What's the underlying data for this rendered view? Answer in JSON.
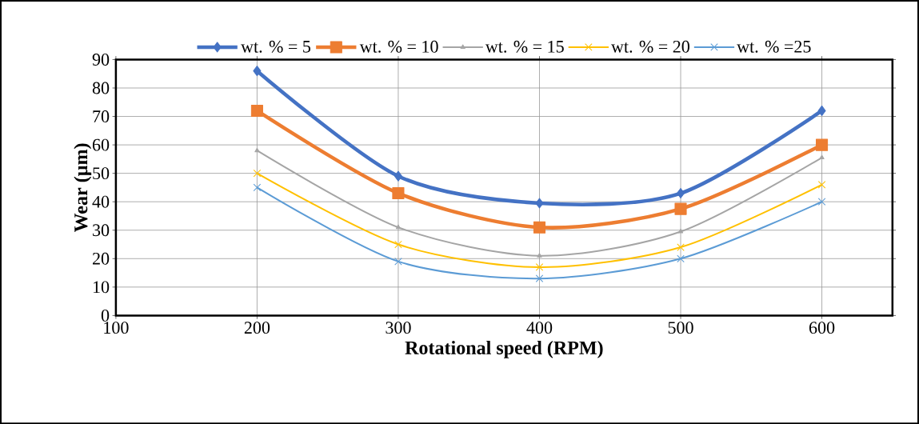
{
  "chart_data": {
    "type": "line",
    "xlabel": "Rotational speed   (RPM)",
    "ylabel": "Wear   (µm)",
    "x": [
      200,
      300,
      400,
      500,
      600
    ],
    "series": [
      {
        "name": "wt. % = 5",
        "color": "#4472c4",
        "marker": "diamond",
        "values": [
          86,
          49,
          39.5,
          43,
          72
        ]
      },
      {
        "name": "wt. % = 10",
        "color": "#ed7d31",
        "marker": "square",
        "values": [
          72,
          43,
          31,
          37.5,
          60
        ]
      },
      {
        "name": "wt. % = 15",
        "color": "#a5a5a5",
        "marker": "triangle",
        "values": [
          58,
          31,
          21,
          29.5,
          55.5
        ]
      },
      {
        "name": "wt. % = 20",
        "color": "#ffc000",
        "marker": "cross",
        "values": [
          50,
          25,
          17,
          24,
          46
        ]
      },
      {
        "name": "wt. % =25",
        "color": "#5b9bd5",
        "marker": "cross",
        "values": [
          45,
          19,
          13,
          20,
          40
        ]
      }
    ],
    "xlim": [
      100,
      650
    ],
    "xticks": [
      100,
      200,
      300,
      400,
      500,
      600
    ],
    "ylim": [
      0,
      90
    ],
    "yticks": [
      0,
      10,
      20,
      30,
      40,
      50,
      60,
      70,
      80,
      90
    ],
    "grid": true,
    "legend": "top"
  }
}
